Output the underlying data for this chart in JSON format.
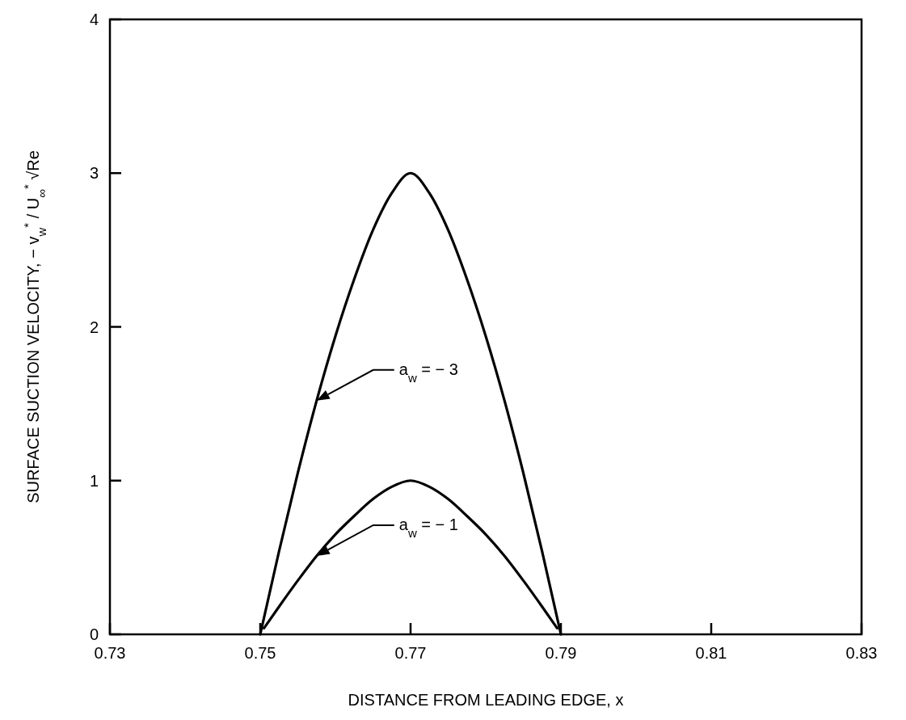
{
  "chart_data": {
    "type": "line",
    "xlabel": "DISTANCE FROM LEADING EDGE, x",
    "ylabel": "SURFACE SUCTION VELOCITY, − v$_{w}$$^{*}$ / U$_{∞}$$^{*}$ √Re",
    "x": [
      0.75,
      0.7525,
      0.755,
      0.7575,
      0.76,
      0.7625,
      0.765,
      0.7675,
      0.77,
      0.7725,
      0.775,
      0.7775,
      0.78,
      0.7825,
      0.785,
      0.7875,
      0.79
    ],
    "series": [
      {
        "color": "#000000",
        "values": [
          0,
          0.54,
          1.05,
          1.52,
          1.94,
          2.31,
          2.63,
          2.87,
          3,
          2.87,
          2.63,
          2.31,
          1.94,
          1.52,
          1.05,
          0.54,
          0
        ]
      },
      {
        "color": "#000000",
        "x": [
          0.7505,
          0.7525,
          0.755,
          0.7575,
          0.76,
          0.7625,
          0.765,
          0.7675,
          0.77,
          0.7725,
          0.775,
          0.7775,
          0.78,
          0.7825,
          0.785,
          0.7875,
          0.7895
        ],
        "values": [
          0.04,
          0.18,
          0.35,
          0.51,
          0.65,
          0.77,
          0.88,
          0.96,
          1,
          0.96,
          0.88,
          0.77,
          0.65,
          0.51,
          0.35,
          0.18,
          0.04
        ]
      }
    ],
    "annotations": [
      "a$_{w}$ = − 3",
      "a$_{w}$ = − 1"
    ],
    "xlim": [
      0.73,
      0.83
    ],
    "xticks": [
      0.73,
      0.75,
      0.77,
      0.79,
      0.81,
      0.83
    ],
    "ylim": [
      0,
      4
    ],
    "yticks": [
      0,
      1,
      2,
      3,
      4
    ],
    "grid": false,
    "marker": "none",
    "line_style": "solid"
  }
}
